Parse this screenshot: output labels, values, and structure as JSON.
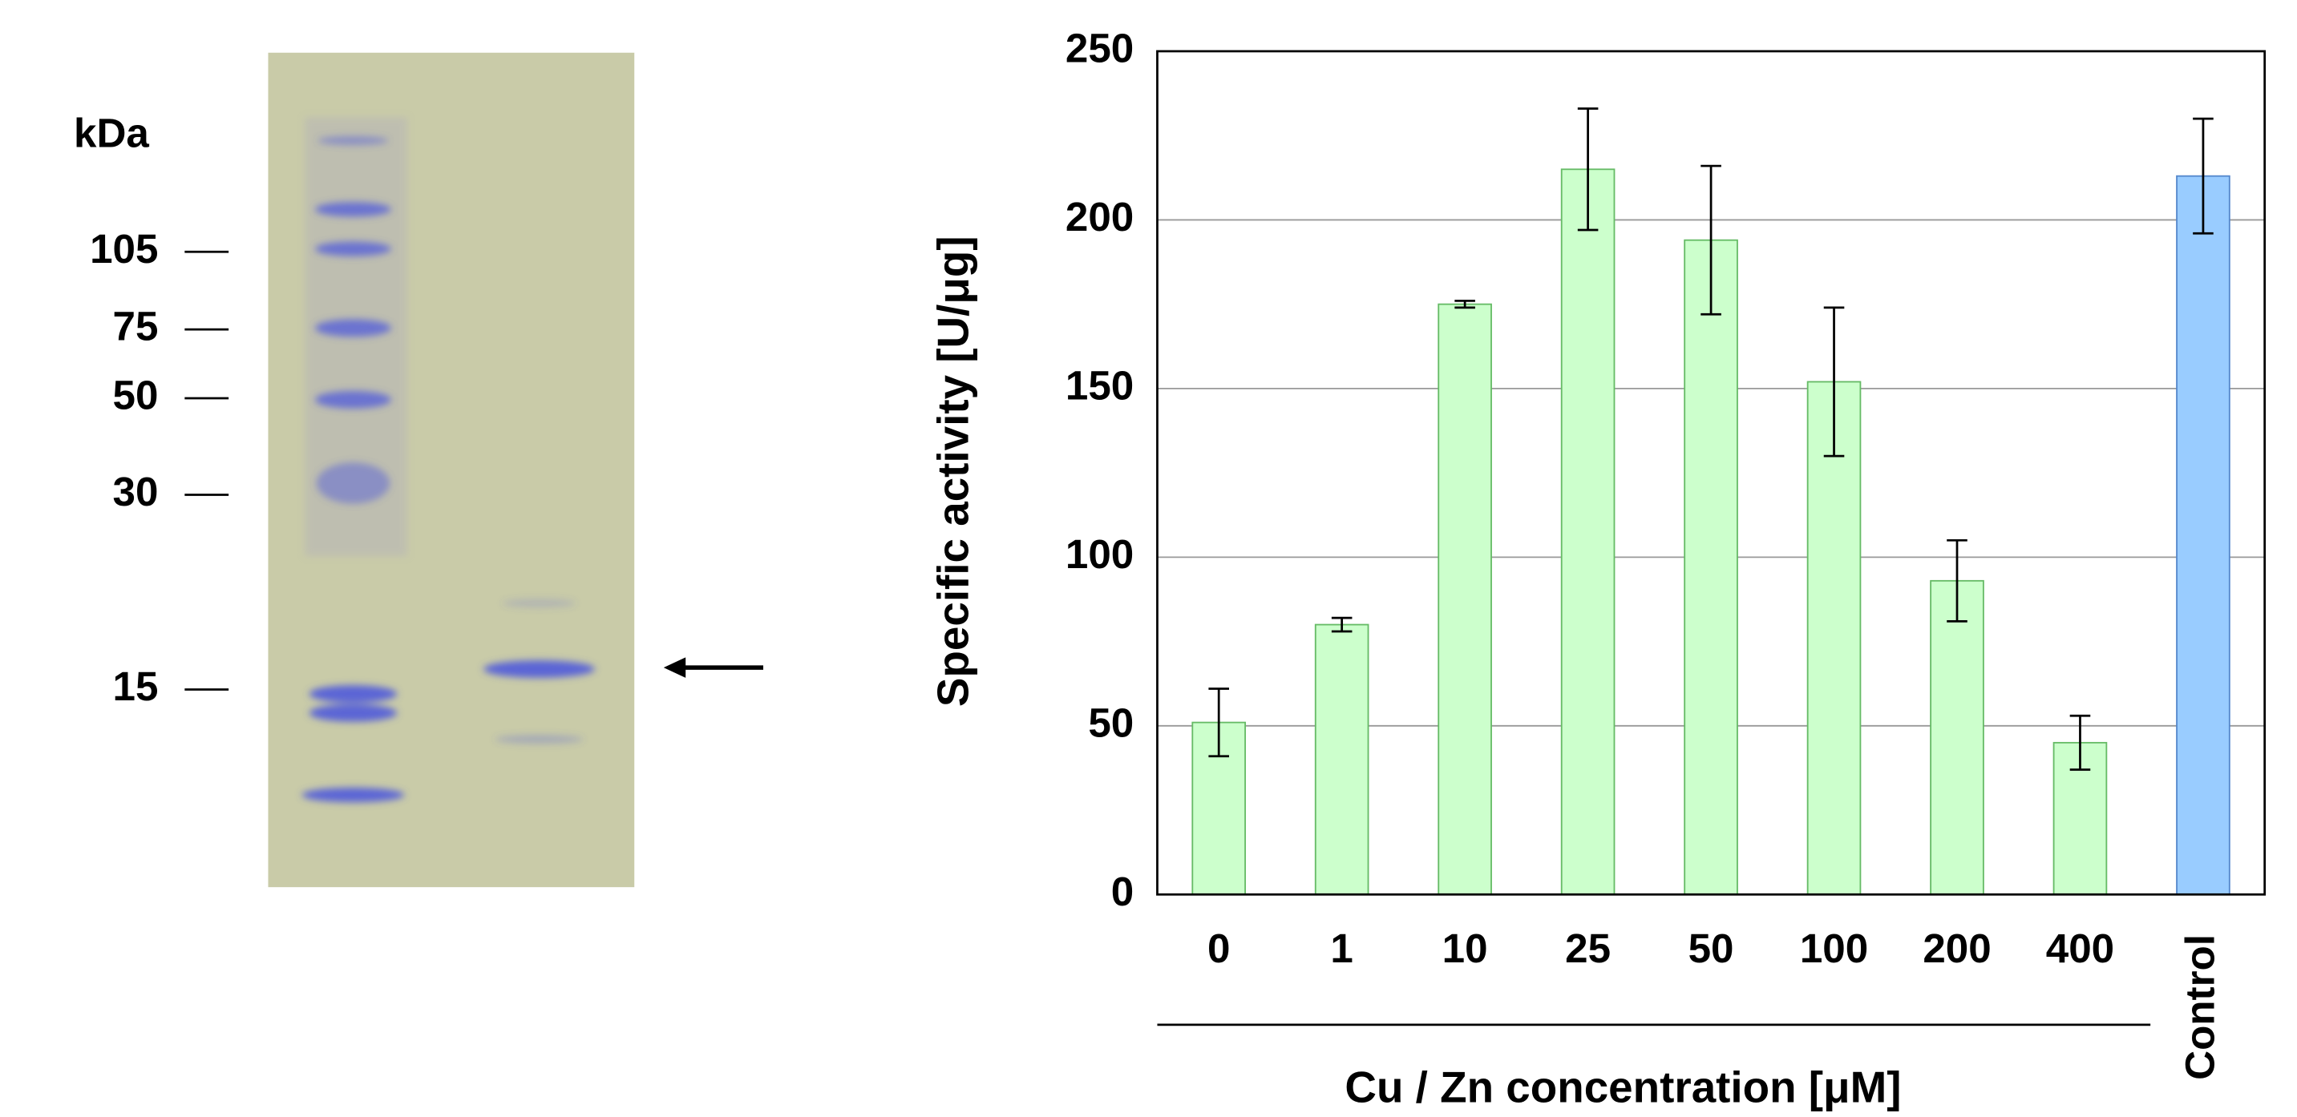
{
  "gel": {
    "unit_label": "kDa",
    "markers": [
      105,
      75,
      50,
      30,
      15
    ]
  },
  "chart_data": {
    "type": "bar",
    "categories": [
      "0",
      "1",
      "10",
      "25",
      "50",
      "100",
      "200",
      "400",
      "Control"
    ],
    "values": [
      51,
      80,
      175,
      215,
      194,
      152,
      93,
      45,
      213
    ],
    "errors": [
      10,
      2,
      1,
      18,
      22,
      22,
      12,
      8,
      17
    ],
    "colors": [
      "#ccffcc",
      "#ccffcc",
      "#ccffcc",
      "#ccffcc",
      "#ccffcc",
      "#ccffcc",
      "#ccffcc",
      "#ccffcc",
      "#99ccff"
    ],
    "edge_colors": [
      "#66bb66",
      "#66bb66",
      "#66bb66",
      "#66bb66",
      "#66bb66",
      "#66bb66",
      "#66bb66",
      "#66bb66",
      "#5588cc"
    ],
    "y_label": "Specific activity [U/μg]",
    "x_label": "Cu / Zn concentration [μM]",
    "ylim": [
      0,
      250
    ],
    "yticks": [
      0,
      50,
      100,
      150,
      200,
      250
    ],
    "grid": true
  }
}
